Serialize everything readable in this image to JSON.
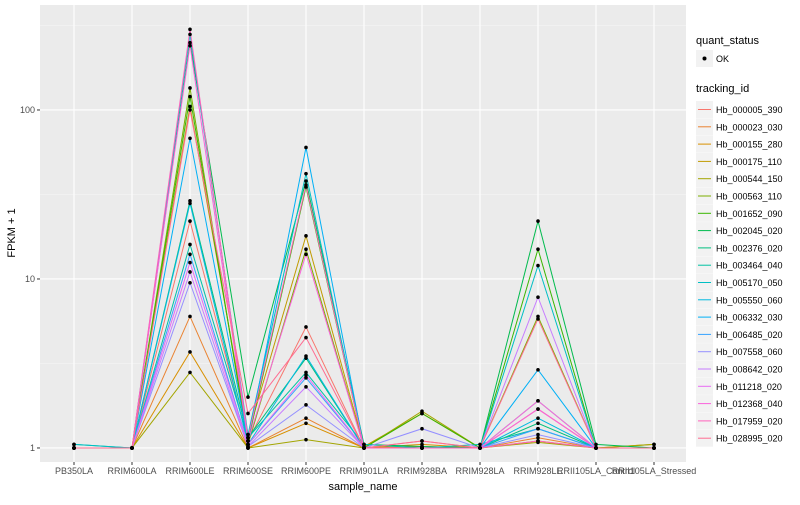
{
  "chart_data": {
    "type": "line",
    "xlabel": "sample_name",
    "ylabel": "FPKM + 1",
    "yscale": "log10",
    "ylim": [
      0.826,
      418
    ],
    "yticks": [
      1,
      10,
      100
    ],
    "ytick_labels": [
      "1",
      "10",
      "100"
    ],
    "categories": [
      "PB350LA",
      "RRIM600LA",
      "RRIM600LE",
      "RRIM600SE",
      "RRIM600PE",
      "RRIM901LA",
      "RRIM928BA",
      "RRIM928LA",
      "RRIM928LE",
      "RRII105LA_Control",
      "RRII105LA_Stressed"
    ],
    "legend_shape": {
      "title": "quant_status",
      "entries": [
        "OK"
      ]
    },
    "legend_title": "tracking_id",
    "legend_placement": "right",
    "series": [
      {
        "name": "Hb_000005_390",
        "color": "#F8766D",
        "values": [
          1,
          1,
          22,
          1.1,
          5.2,
          1,
          1.1,
          1,
          1.7,
          1,
          1
        ]
      },
      {
        "name": "Hb_000023_030",
        "color": "#EA8331",
        "values": [
          1,
          1,
          6,
          1,
          1.5,
          1,
          1.02,
          1,
          1.15,
          1,
          1
        ]
      },
      {
        "name": "Hb_000155_280",
        "color": "#D89000",
        "values": [
          1,
          1,
          3.7,
          1,
          1.4,
          1,
          1.05,
          1,
          1.1,
          1,
          1
        ]
      },
      {
        "name": "Hb_000175_110",
        "color": "#C09B00",
        "values": [
          1,
          1,
          105,
          1.2,
          18,
          1.02,
          1.6,
          1,
          1.9,
          1,
          1.05
        ]
      },
      {
        "name": "Hb_000544_150",
        "color": "#A3A500",
        "values": [
          1,
          1,
          2.8,
          1,
          1.12,
          1,
          1.65,
          1,
          1.08,
          1,
          1.05
        ]
      },
      {
        "name": "Hb_000563_110",
        "color": "#7CAE00",
        "values": [
          1,
          1,
          135,
          1.05,
          15,
          1,
          1,
          1,
          6,
          1,
          1
        ]
      },
      {
        "name": "Hb_001652_090",
        "color": "#39B600",
        "values": [
          1,
          1,
          120,
          1.1,
          35,
          1,
          1.6,
          1,
          15,
          1,
          1
        ]
      },
      {
        "name": "Hb_002045_020",
        "color": "#00BB4E",
        "values": [
          1,
          1,
          250,
          2,
          38,
          1.05,
          1.02,
          1,
          22,
          1.05,
          1
        ]
      },
      {
        "name": "Hb_002376_020",
        "color": "#00BF7D",
        "values": [
          1,
          1,
          29,
          1.15,
          3.4,
          1,
          1,
          1,
          1.4,
          1,
          1
        ]
      },
      {
        "name": "Hb_003464_040",
        "color": "#00C1A3",
        "values": [
          1.05,
          1,
          16,
          1.15,
          2.8,
          1.05,
          1,
          1.05,
          1.3,
          1,
          1
        ]
      },
      {
        "name": "Hb_005170_050",
        "color": "#00BFC4",
        "values": [
          1.05,
          1,
          280,
          1.2,
          42,
          1,
          1,
          1,
          12,
          1,
          1
        ]
      },
      {
        "name": "Hb_005550_060",
        "color": "#00BAE0",
        "values": [
          1,
          1,
          28,
          1.05,
          3.5,
          1,
          1,
          1,
          1.5,
          1,
          1
        ]
      },
      {
        "name": "Hb_006332_030",
        "color": "#00B0F6",
        "values": [
          1,
          1,
          68,
          1.1,
          60,
          1,
          1,
          1,
          2.9,
          1,
          1
        ]
      },
      {
        "name": "Hb_006485_020",
        "color": "#35A2FF",
        "values": [
          1,
          1,
          14,
          1.05,
          2.6,
          1,
          1,
          1,
          1.3,
          1,
          1
        ]
      },
      {
        "name": "Hb_007558_060",
        "color": "#9590FF",
        "values": [
          1,
          1,
          9.5,
          1.02,
          1.8,
          1,
          1.3,
          1,
          1.2,
          1,
          1
        ]
      },
      {
        "name": "Hb_008642_020",
        "color": "#C77CFF",
        "values": [
          1,
          1,
          11,
          1.02,
          2.3,
          1,
          1,
          1,
          7.8,
          1,
          1
        ]
      },
      {
        "name": "Hb_011218_020",
        "color": "#E76BF3",
        "values": [
          1,
          1,
          12.5,
          1.05,
          2.7,
          1,
          1,
          1,
          1.9,
          1,
          1
        ]
      },
      {
        "name": "Hb_012368_040",
        "color": "#FA62DB",
        "values": [
          1,
          1,
          240,
          1.1,
          14,
          1,
          1,
          1,
          1.7,
          1,
          1
        ]
      },
      {
        "name": "Hb_017959_020",
        "color": "#FF62BC",
        "values": [
          1,
          1,
          300,
          1.15,
          36,
          1,
          1,
          1,
          1.1,
          1,
          1
        ]
      },
      {
        "name": "Hb_028995_020",
        "color": "#FF6C91",
        "values": [
          1,
          1,
          100,
          1.6,
          4.5,
          1,
          1.1,
          1,
          5.8,
          1,
          1
        ]
      }
    ]
  }
}
